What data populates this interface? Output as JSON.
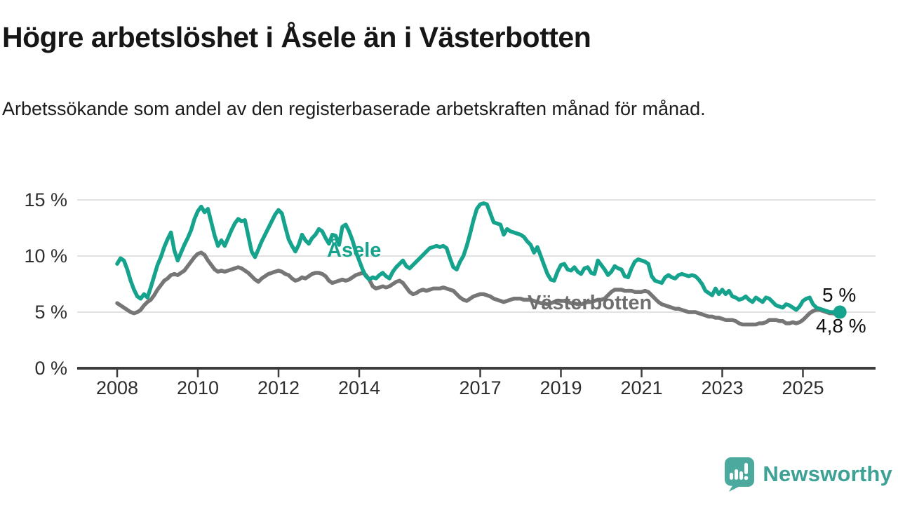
{
  "header": {
    "title": "Högre arbetslöshet i Åsele än i Västerbotten",
    "subtitle": "Arbetssökande som andel av den registerbaserade arbetskraften månad för månad."
  },
  "chart_data": {
    "type": "line",
    "title": "Högre arbetslöshet i Åsele än i Västerbotten",
    "subtitle": "Arbetssökande som andel av den registerbaserade arbetskraften månad för månad.",
    "unit": "%",
    "grid": "horizontal",
    "legend_position": "inline-labels",
    "x_axis": {
      "start_year": 2008,
      "interval_months": 1,
      "tick_years": [
        2008,
        2010,
        2012,
        2014,
        2017,
        2019,
        2021,
        2023,
        2025
      ],
      "tick_labels": [
        "2008",
        "2010",
        "2012",
        "2014",
        "2017",
        "2019",
        "2021",
        "2023",
        "2025"
      ]
    },
    "y_axis": {
      "range": [
        0,
        15.6
      ],
      "ticks": [
        {
          "value": 0,
          "label": "0 %"
        },
        {
          "value": 5,
          "label": "5 %"
        },
        {
          "value": 10,
          "label": "10 %"
        },
        {
          "value": 15,
          "label": "15 %"
        }
      ]
    },
    "series": [
      {
        "name": "Åsele",
        "color": "#16A38D",
        "end_dot": true,
        "values": [
          9.3,
          9.8,
          9.6,
          8.8,
          7.8,
          7.0,
          6.4,
          6.2,
          6.6,
          6.3,
          7.2,
          8.2,
          9.2,
          9.9,
          10.8,
          11.5,
          12.1,
          10.5,
          9.6,
          10.3,
          11.0,
          11.6,
          12.3,
          13.3,
          14.0,
          14.4,
          13.9,
          14.2,
          13.0,
          11.8,
          10.9,
          11.4,
          10.9,
          11.6,
          12.3,
          12.9,
          13.3,
          13.1,
          13.2,
          11.8,
          10.4,
          9.9,
          10.6,
          11.3,
          11.9,
          12.5,
          13.1,
          13.7,
          14.1,
          13.8,
          12.6,
          11.5,
          10.9,
          10.4,
          11.0,
          11.9,
          11.4,
          11.1,
          11.6,
          11.9,
          12.4,
          12.2,
          11.6,
          11.1,
          11.9,
          11.8,
          11.0,
          12.6,
          12.8,
          12.2,
          11.4,
          10.4,
          9.6,
          8.8,
          8.2,
          7.9,
          8.1,
          8.0,
          8.3,
          8.5,
          8.2,
          8.0,
          8.6,
          9.0,
          9.3,
          9.6,
          9.1,
          8.9,
          9.2,
          9.5,
          9.8,
          10.1,
          10.4,
          10.7,
          10.8,
          10.9,
          10.8,
          10.9,
          10.7,
          9.8,
          9.0,
          8.8,
          9.5,
          10.0,
          10.9,
          12.0,
          13.2,
          14.2,
          14.6,
          14.7,
          14.6,
          13.8,
          13.0,
          12.9,
          12.8,
          11.9,
          12.4,
          12.2,
          12.1,
          12.0,
          11.9,
          11.7,
          11.3,
          11.0,
          10.3,
          10.8,
          10.0,
          9.2,
          8.4,
          7.9,
          7.8,
          8.6,
          9.2,
          9.3,
          8.8,
          8.7,
          9.0,
          8.6,
          8.4,
          8.9,
          9.0,
          8.5,
          8.4,
          9.6,
          9.2,
          8.8,
          8.3,
          8.6,
          9.1,
          8.9,
          8.8,
          8.2,
          8.1,
          8.9,
          9.5,
          9.7,
          9.6,
          9.5,
          9.3,
          8.2,
          7.8,
          7.7,
          7.6,
          8.1,
          8.3,
          8.1,
          8.0,
          8.3,
          8.4,
          8.3,
          8.2,
          8.3,
          8.2,
          7.9,
          7.5,
          6.9,
          6.7,
          6.5,
          7.1,
          6.6,
          7.0,
          6.6,
          6.9,
          6.4,
          6.3,
          6.1,
          6.2,
          6.4,
          6.1,
          5.9,
          6.3,
          6.1,
          5.9,
          6.3,
          6.2,
          5.9,
          5.6,
          5.5,
          5.4,
          5.7,
          5.6,
          5.4,
          5.2,
          5.5,
          6.0,
          6.2,
          6.3,
          5.7,
          5.4,
          5.3,
          5.2,
          5.1,
          5.0,
          5.0,
          5.0,
          5.0
        ]
      },
      {
        "name": "Västerbotten",
        "color": "#767676",
        "end_dot": false,
        "values": [
          5.8,
          5.6,
          5.4,
          5.2,
          5.0,
          4.9,
          5.0,
          5.2,
          5.6,
          5.9,
          6.1,
          6.5,
          7.0,
          7.4,
          7.8,
          8.0,
          8.3,
          8.4,
          8.3,
          8.5,
          8.7,
          9.1,
          9.5,
          9.9,
          10.2,
          10.3,
          10.1,
          9.6,
          9.2,
          8.8,
          8.6,
          8.7,
          8.6,
          8.7,
          8.8,
          8.9,
          9.0,
          8.9,
          8.7,
          8.5,
          8.2,
          7.9,
          7.7,
          8.0,
          8.2,
          8.4,
          8.5,
          8.6,
          8.7,
          8.6,
          8.4,
          8.3,
          8.0,
          7.8,
          7.9,
          8.1,
          8.0,
          8.2,
          8.4,
          8.5,
          8.5,
          8.4,
          8.2,
          7.8,
          7.6,
          7.7,
          7.8,
          7.9,
          7.8,
          7.9,
          8.1,
          8.3,
          8.4,
          8.5,
          8.3,
          7.9,
          7.3,
          7.1,
          7.2,
          7.3,
          7.2,
          7.3,
          7.5,
          7.7,
          7.8,
          7.6,
          7.2,
          6.8,
          6.6,
          6.7,
          6.9,
          7.0,
          6.9,
          7.0,
          7.1,
          7.1,
          7.1,
          7.2,
          7.1,
          7.0,
          6.9,
          6.6,
          6.3,
          6.1,
          6.0,
          6.2,
          6.4,
          6.5,
          6.6,
          6.6,
          6.5,
          6.4,
          6.2,
          6.1,
          6.0,
          5.9,
          6.0,
          6.1,
          6.2,
          6.2,
          6.2,
          6.1,
          6.1,
          6.1,
          6.0,
          5.9,
          5.8,
          5.8,
          5.7,
          5.8,
          5.9,
          6.0,
          6.0,
          6.0,
          5.9,
          5.8,
          5.8,
          5.7,
          5.7,
          5.8,
          5.9,
          5.9,
          6.0,
          6.1,
          6.1,
          6.2,
          6.5,
          6.8,
          7.0,
          7.0,
          7.0,
          6.9,
          6.9,
          6.9,
          6.8,
          6.8,
          6.8,
          6.9,
          6.8,
          6.5,
          6.2,
          5.9,
          5.7,
          5.6,
          5.5,
          5.4,
          5.3,
          5.3,
          5.2,
          5.1,
          5.0,
          5.0,
          5.0,
          4.9,
          4.8,
          4.7,
          4.6,
          4.6,
          4.5,
          4.5,
          4.4,
          4.3,
          4.3,
          4.3,
          4.2,
          4.0,
          3.9,
          3.9,
          3.9,
          3.9,
          3.9,
          4.0,
          4.0,
          4.1,
          4.3,
          4.3,
          4.3,
          4.2,
          4.2,
          4.0,
          4.0,
          4.1,
          4.0,
          4.1,
          4.3,
          4.6,
          4.9,
          5.1,
          5.2,
          5.2,
          5.1,
          5.0,
          4.9,
          4.9,
          4.8,
          4.8
        ]
      }
    ],
    "annotations": {
      "asele_label": "Åsele",
      "vasterbotten_label": "Västerbotten",
      "end_value_asele": "5 %",
      "end_value_vasterbotten": "4,8 %"
    },
    "colors": {
      "grid": "#d9d9d9",
      "axis": "#3d3d3d",
      "tick_text": "#2e2e2e"
    }
  },
  "footer": {
    "brand": "Newsworthy",
    "brand_color": "#3EA195",
    "logo_color": "#4BA99E"
  }
}
